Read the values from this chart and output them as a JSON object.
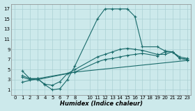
{
  "xlabel": "Humidex (Indice chaleur)",
  "bg_color": "#cce9eb",
  "grid_color": "#aad0d4",
  "line_color": "#1a6b6b",
  "xlim": [
    -0.5,
    23.5
  ],
  "ylim": [
    0,
    18
  ],
  "xticks": [
    0,
    1,
    2,
    3,
    4,
    5,
    6,
    7,
    8,
    10,
    11,
    12,
    13,
    14,
    15,
    16,
    17,
    18,
    19,
    20,
    21,
    22,
    23
  ],
  "yticks": [
    1,
    3,
    5,
    7,
    9,
    11,
    13,
    15,
    17
  ],
  "series1_x": [
    1,
    2,
    3,
    4,
    5,
    6,
    7,
    8,
    11,
    12,
    13,
    14,
    15,
    16,
    17,
    19,
    20,
    21,
    22,
    23
  ],
  "series1_y": [
    4.7,
    3.2,
    3.2,
    2.0,
    1.0,
    1.2,
    3.0,
    5.7,
    15.0,
    17.0,
    17.0,
    17.0,
    17.0,
    15.5,
    9.5,
    9.5,
    8.7,
    8.5,
    7.2,
    7.0
  ],
  "series2_x": [
    1,
    2,
    3,
    4,
    5,
    6,
    7,
    8,
    11,
    12,
    13,
    14,
    15,
    16,
    17,
    19,
    20,
    21,
    22,
    23
  ],
  "series2_y": [
    3.8,
    3.2,
    3.2,
    2.1,
    1.9,
    2.6,
    4.2,
    5.0,
    7.5,
    8.0,
    8.5,
    9.0,
    9.2,
    9.0,
    8.8,
    8.0,
    8.0,
    8.5,
    7.5,
    7.2
  ],
  "series3_x": [
    1,
    2,
    3,
    8,
    11,
    12,
    13,
    14,
    15,
    16,
    17,
    19,
    20,
    21,
    22,
    23
  ],
  "series3_y": [
    3.5,
    3.0,
    3.0,
    4.5,
    6.5,
    7.0,
    7.2,
    7.5,
    7.8,
    8.0,
    8.2,
    7.7,
    8.5,
    8.5,
    7.2,
    7.0
  ],
  "series4_x": [
    1,
    3,
    8,
    23
  ],
  "series4_y": [
    2.5,
    3.2,
    4.5,
    6.8
  ]
}
